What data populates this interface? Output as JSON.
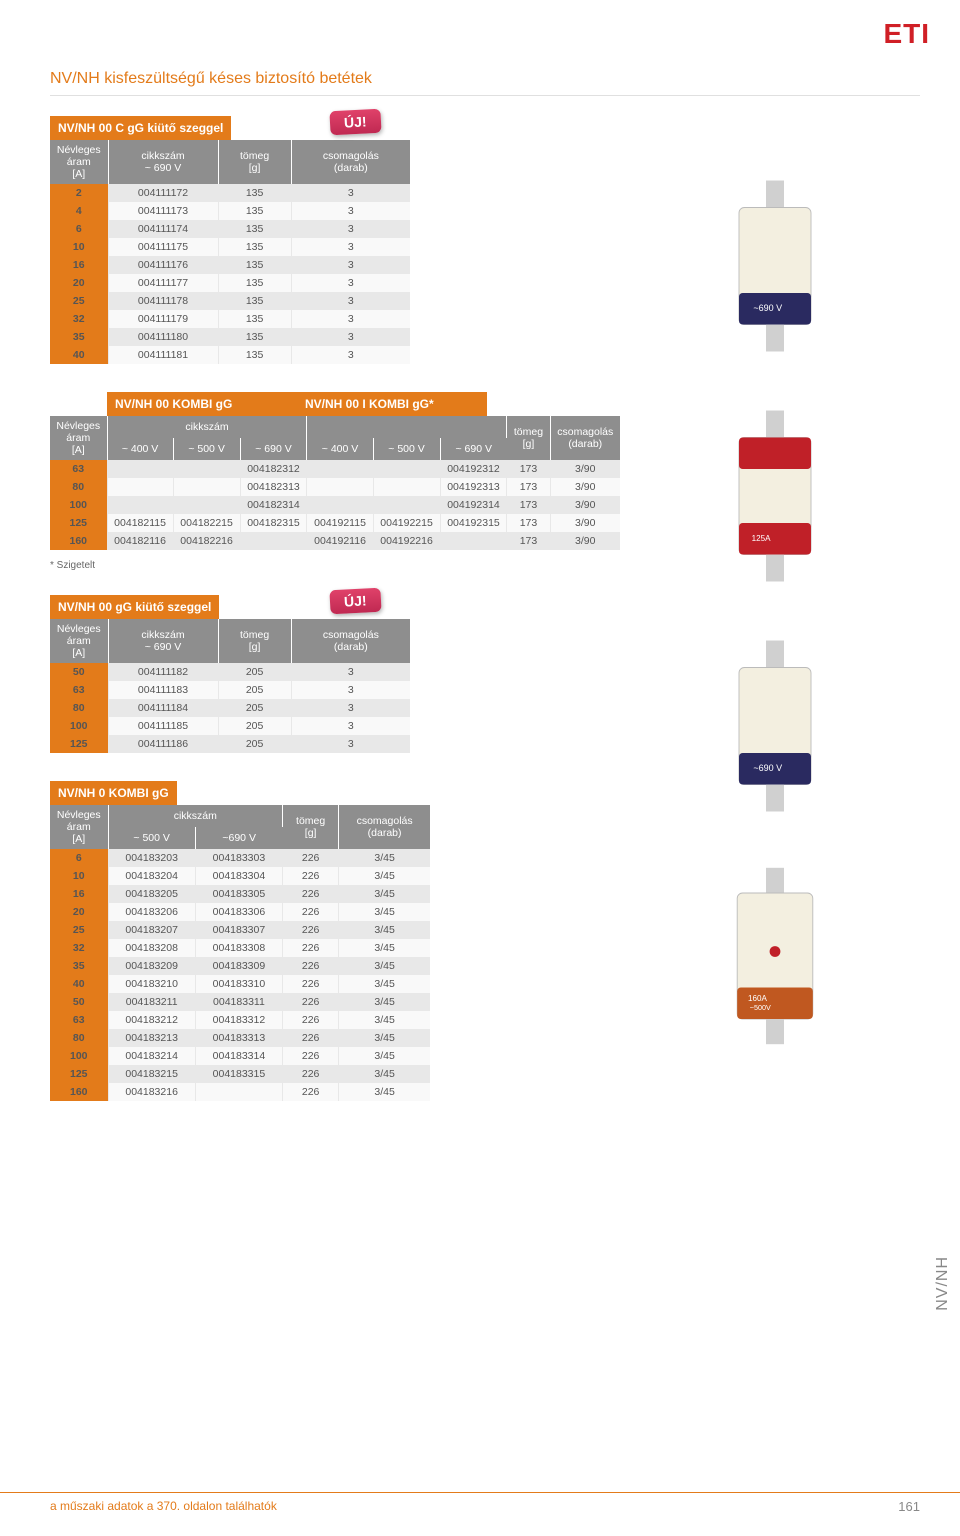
{
  "brand": "ETI",
  "page_title": "NV/NH kisfeszültségű késes biztosító betétek",
  "badge_text": "ÚJ!",
  "footnote": "* Szigetelt",
  "footer_text": "a műszaki adatok a 370. oldalon találhatók",
  "page_number": "161",
  "side_tab": "NV/NH",
  "table1": {
    "title": "NV/NH 00 C gG kiütő szeggel",
    "headers": [
      "Névleges áram [A]",
      "cikkszám\n~ 690 V",
      "tömeg\n[g]",
      "csomagolás\n(darab)"
    ],
    "rows": [
      [
        "2",
        "004111172",
        "135",
        "3"
      ],
      [
        "4",
        "004111173",
        "135",
        "3"
      ],
      [
        "6",
        "004111174",
        "135",
        "3"
      ],
      [
        "10",
        "004111175",
        "135",
        "3"
      ],
      [
        "16",
        "004111176",
        "135",
        "3"
      ],
      [
        "20",
        "004111177",
        "135",
        "3"
      ],
      [
        "25",
        "004111178",
        "135",
        "3"
      ],
      [
        "32",
        "004111179",
        "135",
        "3"
      ],
      [
        "35",
        "004111180",
        "135",
        "3"
      ],
      [
        "40",
        "004111181",
        "135",
        "3"
      ]
    ]
  },
  "table2": {
    "title_a": "NV/NH 00 KOMBI gG",
    "title_b": "NV/NH 00 I KOMBI gG*",
    "h_top": [
      "Névleges áram",
      "cikkszám",
      "",
      "",
      "",
      "",
      "",
      "tömeg",
      "csomagolás"
    ],
    "headers": [
      "[A]",
      "~ 400 V",
      "~ 500 V",
      "~ 690 V",
      "~ 400 V",
      "~ 500 V",
      "~ 690 V",
      "[g]",
      "(darab)"
    ],
    "rows": [
      [
        "63",
        "",
        "",
        "004182312",
        "",
        "",
        "004192312",
        "173",
        "3/90"
      ],
      [
        "80",
        "",
        "",
        "004182313",
        "",
        "",
        "004192313",
        "173",
        "3/90"
      ],
      [
        "100",
        "",
        "",
        "004182314",
        "",
        "",
        "004192314",
        "173",
        "3/90"
      ],
      [
        "125",
        "004182115",
        "004182215",
        "004182315",
        "004192115",
        "004192215",
        "004192315",
        "173",
        "3/90"
      ],
      [
        "160",
        "004182116",
        "004182216",
        "",
        "004192116",
        "004192216",
        "",
        "173",
        "3/90"
      ]
    ]
  },
  "table3": {
    "title": "NV/NH 00 gG kiütő szeggel",
    "headers": [
      "Névleges áram [A]",
      "cikkszám\n~ 690 V",
      "tömeg\n[g]",
      "csomagolás\n(darab)"
    ],
    "rows": [
      [
        "50",
        "004111182",
        "205",
        "3"
      ],
      [
        "63",
        "004111183",
        "205",
        "3"
      ],
      [
        "80",
        "004111184",
        "205",
        "3"
      ],
      [
        "100",
        "004111185",
        "205",
        "3"
      ],
      [
        "125",
        "004111186",
        "205",
        "3"
      ]
    ]
  },
  "table4": {
    "title": "NV/NH 0 KOMBI gG",
    "h_top": [
      "Névleges áram",
      "cikkszám",
      "",
      "tömeg",
      "csomagolás"
    ],
    "headers": [
      "[A]",
      "~ 500 V",
      "~690 V",
      "[g]",
      "(darab)"
    ],
    "rows": [
      [
        "6",
        "004183203",
        "004183303",
        "226",
        "3/45"
      ],
      [
        "10",
        "004183204",
        "004183304",
        "226",
        "3/45"
      ],
      [
        "16",
        "004183205",
        "004183305",
        "226",
        "3/45"
      ],
      [
        "20",
        "004183206",
        "004183306",
        "226",
        "3/45"
      ],
      [
        "25",
        "004183207",
        "004183307",
        "226",
        "3/45"
      ],
      [
        "32",
        "004183208",
        "004183308",
        "226",
        "3/45"
      ],
      [
        "35",
        "004183209",
        "004183309",
        "226",
        "3/45"
      ],
      [
        "40",
        "004183210",
        "004183310",
        "226",
        "3/45"
      ],
      [
        "50",
        "004183211",
        "004183311",
        "226",
        "3/45"
      ],
      [
        "63",
        "004183212",
        "004183312",
        "226",
        "3/45"
      ],
      [
        "80",
        "004183213",
        "004183313",
        "226",
        "3/45"
      ],
      [
        "100",
        "004183214",
        "004183314",
        "226",
        "3/45"
      ],
      [
        "125",
        "004183215",
        "004183315",
        "226",
        "3/45"
      ],
      [
        "160",
        "004183216",
        "",
        "226",
        "3/45"
      ]
    ]
  },
  "labels": {
    "nevleges": "Névleges áram",
    "cikkszam": "cikkszám",
    "tomeg": "tömeg",
    "csomagolas": "csomagolás"
  },
  "colors": {
    "orange": "#e37b1a",
    "header_gray": "#8e8e8e",
    "row_alt": "#e8e8e8",
    "red": "#d01f26"
  }
}
